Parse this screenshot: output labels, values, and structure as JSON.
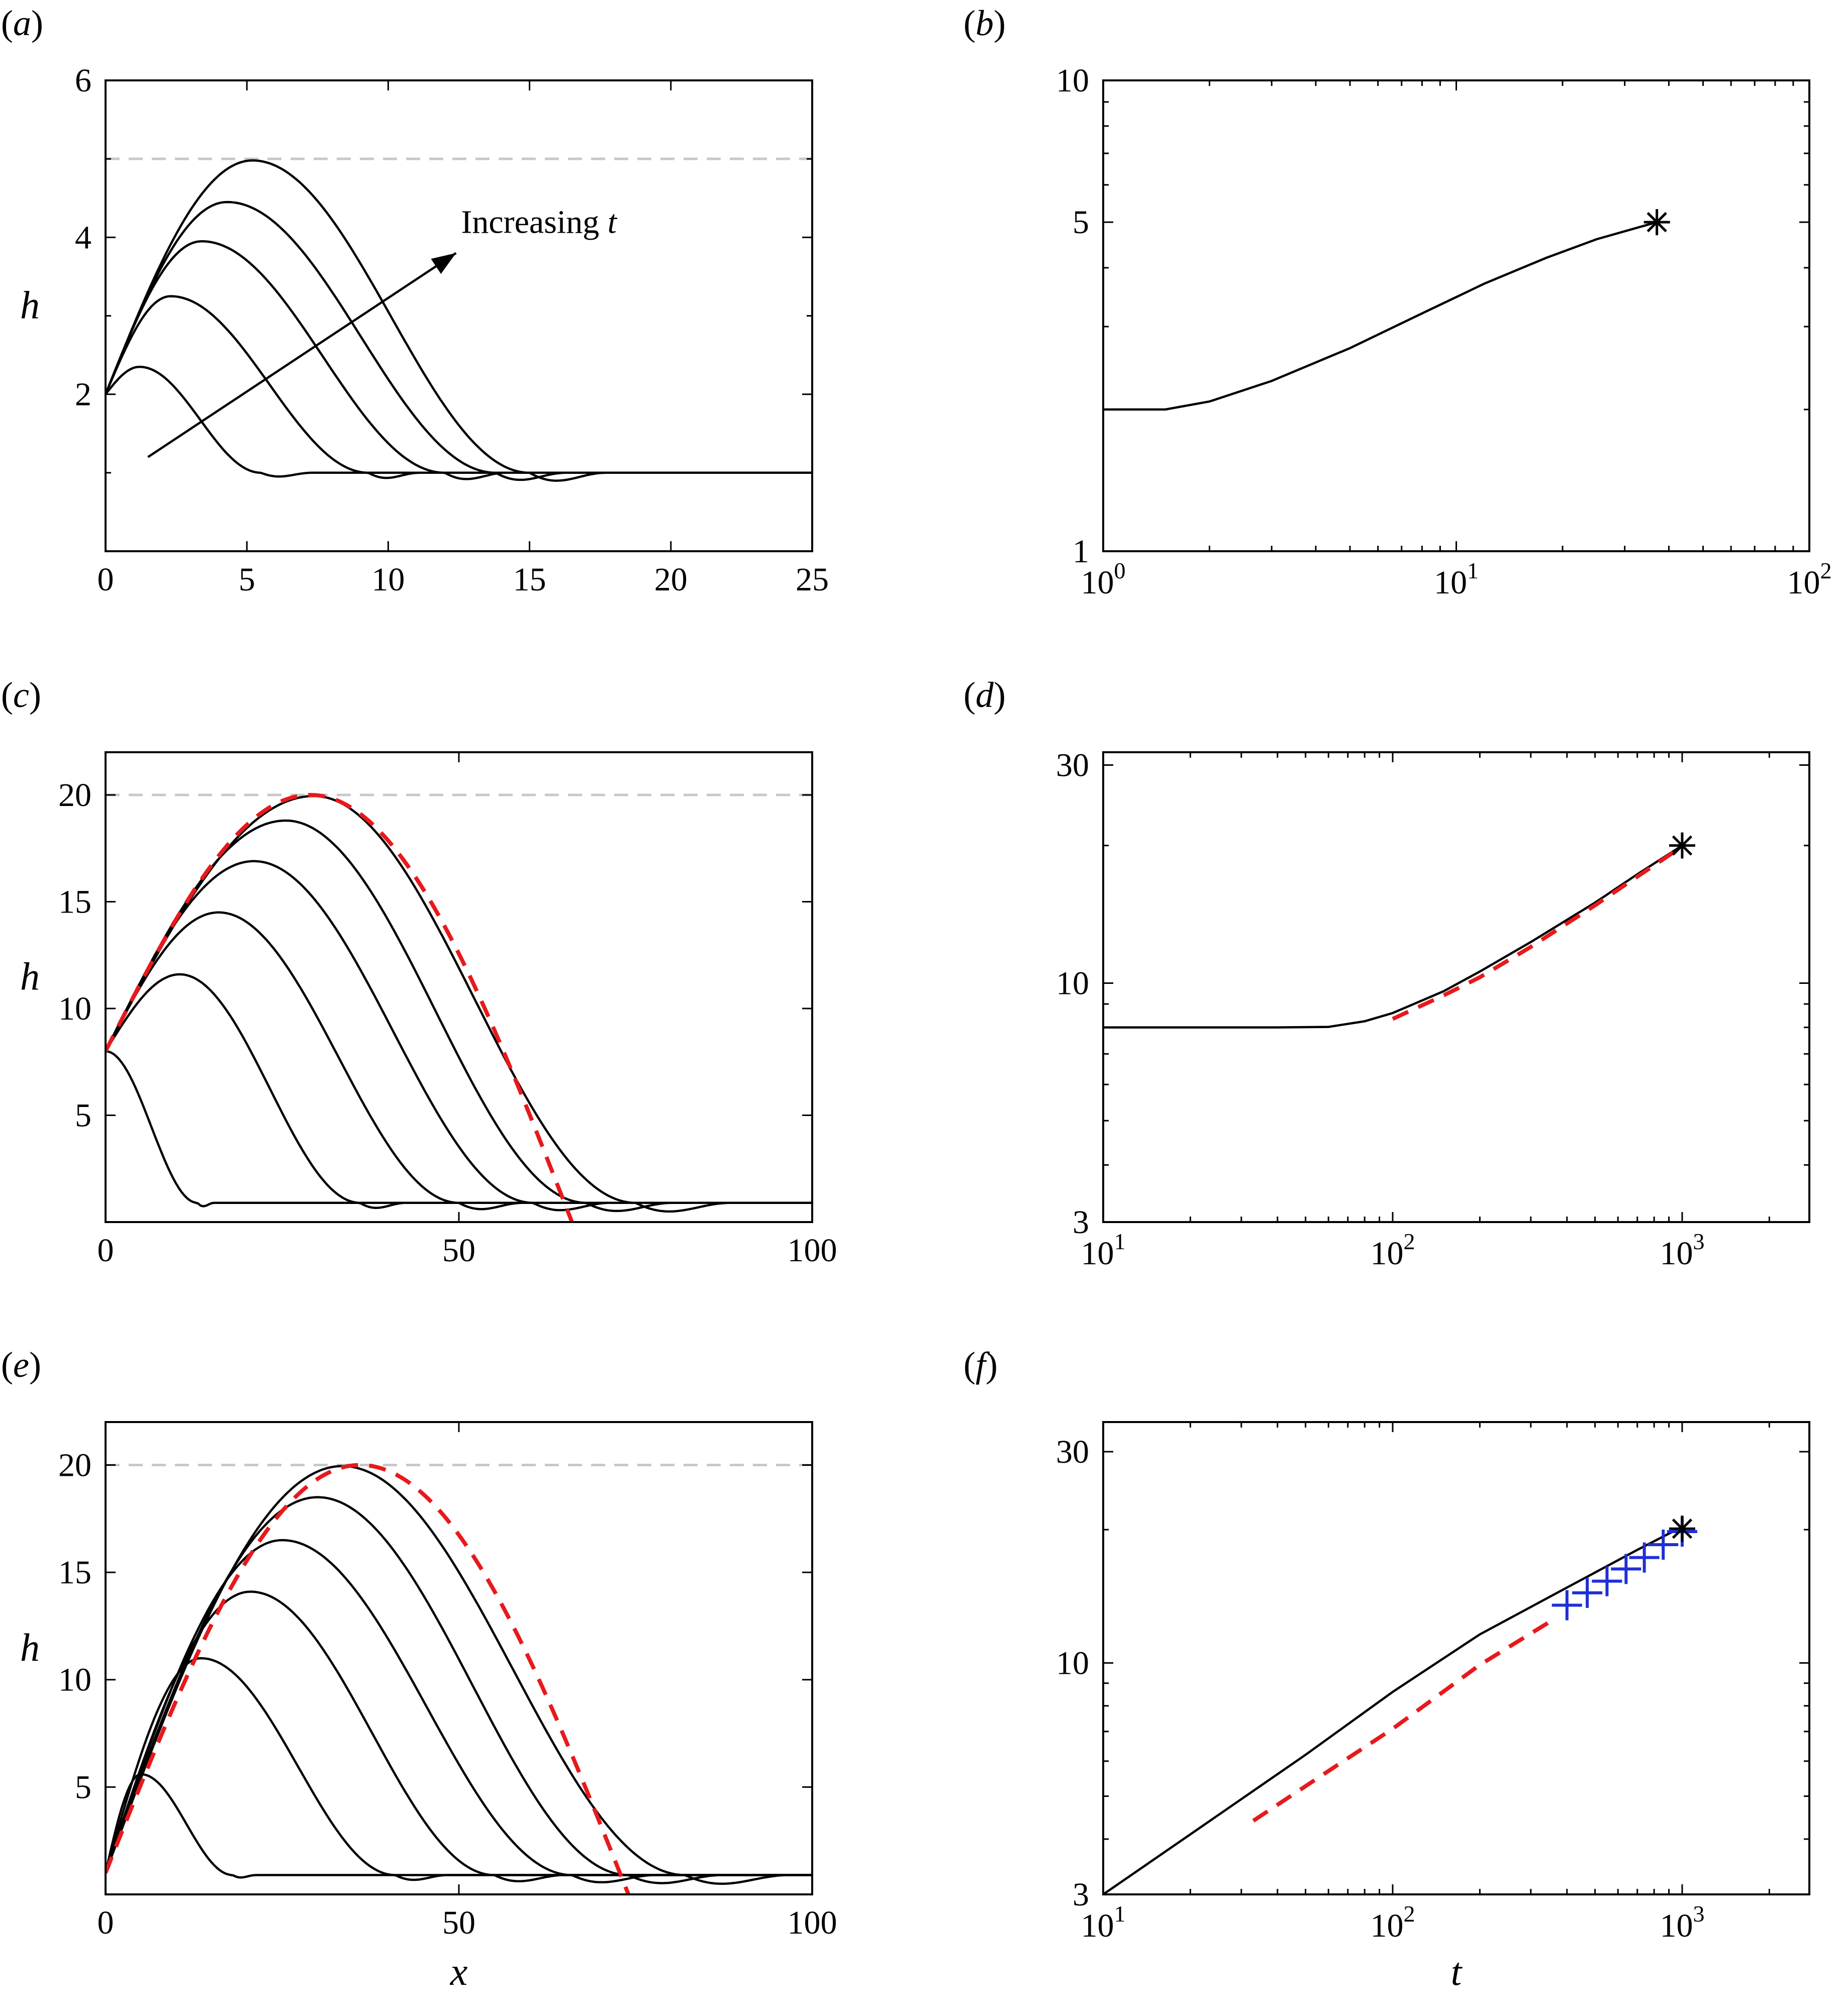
{
  "chart_data": [
    {
      "id": "a",
      "type": "line",
      "panel_label": "(a)",
      "xlabel": "",
      "ylabel": "h",
      "xlim": [
        0,
        25
      ],
      "ylim": [
        0,
        6
      ],
      "xticks": [
        0,
        5,
        10,
        15,
        20,
        25
      ],
      "xtick_labels": [
        "0",
        "5",
        "10",
        "15",
        "20",
        "25"
      ],
      "yticks": [
        2,
        4,
        6
      ],
      "ytick_labels": [
        "2",
        "4",
        "6"
      ],
      "reference_line": {
        "y": 5,
        "style": "dashed",
        "color": "#c8c8c8"
      },
      "annotation": {
        "text_prefix": "Increasing ",
        "text_var": "t",
        "arrow_from": [
          1.5,
          1.2
        ],
        "arrow_to": [
          12.4,
          3.8
        ]
      },
      "series": [
        {
          "shape": "bump",
          "h0": 2.0,
          "peak_x": 1.2,
          "peak_h": 2.35,
          "front_x": 5.5,
          "color": "#000000"
        },
        {
          "shape": "bump",
          "h0": 2.0,
          "peak_x": 2.3,
          "peak_h": 3.25,
          "front_x": 9.3,
          "color": "#000000"
        },
        {
          "shape": "bump",
          "h0": 2.0,
          "peak_x": 3.4,
          "peak_h": 3.95,
          "front_x": 12.0,
          "color": "#000000"
        },
        {
          "shape": "bump",
          "h0": 2.0,
          "peak_x": 4.3,
          "peak_h": 4.45,
          "front_x": 13.8,
          "color": "#000000"
        },
        {
          "shape": "bump",
          "h0": 2.0,
          "peak_x": 5.2,
          "peak_h": 4.98,
          "front_x": 15.0,
          "color": "#000000"
        }
      ],
      "baseline_h": 1.0
    },
    {
      "id": "b",
      "type": "line",
      "panel_label": "(b)",
      "xlabel": "",
      "ylabel": "",
      "xscale": "log",
      "yscale": "log",
      "xlim": [
        1,
        100
      ],
      "ylim": [
        1,
        10
      ],
      "xticks": [
        1,
        10,
        100
      ],
      "xtick_labels": [
        [
          "10",
          "0"
        ],
        [
          "10",
          "1"
        ],
        [
          "10",
          "2"
        ]
      ],
      "yticks": [
        1,
        5,
        10
      ],
      "ytick_labels": [
        "1",
        "5",
        "10"
      ],
      "series": [
        {
          "name": "",
          "style": "solid",
          "color": "#000000",
          "x": [
            1,
            1.5,
            2,
            3,
            5,
            8,
            12,
            18,
            25,
            37
          ],
          "y": [
            2.0,
            2.0,
            2.08,
            2.3,
            2.7,
            3.2,
            3.7,
            4.2,
            4.6,
            5.0
          ]
        }
      ],
      "markers": [
        {
          "x": 37,
          "y": 5.0,
          "symbol": "asterisk",
          "color": "#000000"
        }
      ]
    },
    {
      "id": "c",
      "type": "line",
      "panel_label": "(c)",
      "xlabel": "",
      "ylabel": "h",
      "xlim": [
        0,
        100
      ],
      "ylim": [
        0,
        22
      ],
      "xticks": [
        0,
        50,
        100
      ],
      "xtick_labels": [
        "0",
        "50",
        "100"
      ],
      "yticks": [
        5,
        10,
        15,
        20
      ],
      "ytick_labels": [
        "5",
        "10",
        "15",
        "20"
      ],
      "reference_line": {
        "y": 20,
        "style": "dashed",
        "color": "#c8c8c8"
      },
      "series": [
        {
          "shape": "decay",
          "h0": 8.0,
          "front_x": 13.0,
          "color": "#000000"
        },
        {
          "shape": "bump",
          "h0": 8.0,
          "peak_x": 10.5,
          "peak_h": 11.6,
          "front_x": 36.0,
          "color": "#000000"
        },
        {
          "shape": "bump",
          "h0": 8.0,
          "peak_x": 16.0,
          "peak_h": 14.5,
          "front_x": 50.0,
          "color": "#000000"
        },
        {
          "shape": "bump",
          "h0": 8.0,
          "peak_x": 21.0,
          "peak_h": 16.9,
          "front_x": 60.5,
          "color": "#000000"
        },
        {
          "shape": "bump",
          "h0": 8.0,
          "peak_x": 25.5,
          "peak_h": 18.8,
          "front_x": 68.0,
          "color": "#000000"
        },
        {
          "shape": "bump",
          "h0": 8.0,
          "peak_x": 29.5,
          "peak_h": 19.95,
          "front_x": 75.0,
          "color": "#000000"
        }
      ],
      "dashed_overlay": {
        "h0": 8.0,
        "peak_x": 29.0,
        "peak_h": 20.0,
        "end_x": 66.0,
        "color": "#e8191c"
      },
      "baseline_h": 0.9
    },
    {
      "id": "d",
      "type": "line",
      "panel_label": "(d)",
      "xlabel": "",
      "ylabel": "",
      "xscale": "log",
      "yscale": "log",
      "xlim": [
        10,
        2750
      ],
      "ylim": [
        3,
        32
      ],
      "xticks": [
        10,
        100,
        1000
      ],
      "xtick_labels": [
        [
          "10",
          "1"
        ],
        [
          "10",
          "2"
        ],
        [
          "10",
          "3"
        ]
      ],
      "yticks": [
        3,
        10,
        30
      ],
      "ytick_labels": [
        "3",
        "10",
        "30"
      ],
      "series": [
        {
          "name": "",
          "style": "solid",
          "color": "#000000",
          "x": [
            10,
            20,
            40,
            60,
            80,
            100,
            150,
            200,
            300,
            500,
            700,
            1000
          ],
          "y": [
            8.0,
            8.0,
            8.0,
            8.02,
            8.25,
            8.6,
            9.6,
            10.6,
            12.3,
            15.0,
            17.3,
            20.0
          ]
        },
        {
          "name": "",
          "style": "dashed",
          "color": "#e8191c",
          "x": [
            100,
            150,
            200,
            300,
            500,
            700,
            1000
          ],
          "y": [
            8.35,
            9.4,
            10.3,
            12.0,
            14.8,
            17.1,
            19.9
          ]
        }
      ],
      "markers": [
        {
          "x": 1000,
          "y": 20.0,
          "symbol": "asterisk",
          "color": "#000000"
        }
      ]
    },
    {
      "id": "e",
      "type": "line",
      "panel_label": "(e)",
      "xlabel": "x",
      "ylabel": "h",
      "xlim": [
        0,
        100
      ],
      "ylim": [
        0,
        22
      ],
      "xticks": [
        0,
        50,
        100
      ],
      "xtick_labels": [
        "0",
        "50",
        "100"
      ],
      "yticks": [
        5,
        10,
        15,
        20
      ],
      "ytick_labels": [
        "5",
        "10",
        "15",
        "20"
      ],
      "reference_line": {
        "y": 20,
        "style": "dashed",
        "color": "#c8c8c8"
      },
      "series": [
        {
          "shape": "bump",
          "h0": 1.0,
          "peak_x": 5.0,
          "peak_h": 5.6,
          "front_x": 18.0,
          "color": "#000000"
        },
        {
          "shape": "bump",
          "h0": 1.0,
          "peak_x": 13.5,
          "peak_h": 11.0,
          "front_x": 41.0,
          "color": "#000000"
        },
        {
          "shape": "bump",
          "h0": 1.0,
          "peak_x": 20.5,
          "peak_h": 14.1,
          "front_x": 55.0,
          "color": "#000000"
        },
        {
          "shape": "bump",
          "h0": 1.0,
          "peak_x": 25.0,
          "peak_h": 16.5,
          "front_x": 66.0,
          "color": "#000000"
        },
        {
          "shape": "bump",
          "h0": 1.0,
          "peak_x": 30.0,
          "peak_h": 18.5,
          "front_x": 74.0,
          "color": "#000000"
        },
        {
          "shape": "bump",
          "h0": 1.0,
          "peak_x": 33.5,
          "peak_h": 19.95,
          "front_x": 82.0,
          "color": "#000000"
        }
      ],
      "dashed_overlay": {
        "h0": 1.0,
        "peak_x": 36.0,
        "peak_h": 20.0,
        "end_x": 74.0,
        "color": "#e8191c"
      },
      "baseline_h": 0.9
    },
    {
      "id": "f",
      "type": "line",
      "panel_label": "(f)",
      "xlabel": "t",
      "ylabel": "",
      "xscale": "log",
      "yscale": "log",
      "xlim": [
        10,
        2750
      ],
      "ylim": [
        3,
        35
      ],
      "xticks": [
        10,
        100,
        1000
      ],
      "xtick_labels": [
        [
          "10",
          "1"
        ],
        [
          "10",
          "2"
        ],
        [
          "10",
          "3"
        ]
      ],
      "yticks": [
        3,
        10,
        30
      ],
      "ytick_labels": [
        "3",
        "10",
        "30"
      ],
      "series": [
        {
          "name": "",
          "style": "solid",
          "color": "#000000",
          "x": [
            10,
            20,
            50,
            100,
            200,
            400,
            700,
            1000
          ],
          "y": [
            3.0,
            4.1,
            6.2,
            8.6,
            11.6,
            14.8,
            18.0,
            20.3
          ]
        },
        {
          "name": "",
          "style": "dashed",
          "color": "#e8191c",
          "x": [
            33,
            60,
            100,
            200,
            350
          ],
          "y": [
            4.4,
            5.7,
            7.1,
            9.9,
            12.4
          ]
        }
      ],
      "markers": [
        {
          "x": 400,
          "y": 13.5,
          "symbol": "plus",
          "color": "#1f2fd6"
        },
        {
          "x": 470,
          "y": 14.4,
          "symbol": "plus",
          "color": "#1f2fd6"
        },
        {
          "x": 550,
          "y": 15.3,
          "symbol": "plus",
          "color": "#1f2fd6"
        },
        {
          "x": 640,
          "y": 16.3,
          "symbol": "plus",
          "color": "#1f2fd6"
        },
        {
          "x": 740,
          "y": 17.3,
          "symbol": "plus",
          "color": "#1f2fd6"
        },
        {
          "x": 860,
          "y": 18.5,
          "symbol": "plus",
          "color": "#1f2fd6"
        },
        {
          "x": 1000,
          "y": 19.8,
          "symbol": "plus",
          "color": "#1f2fd6"
        },
        {
          "x": 1000,
          "y": 20.1,
          "symbol": "asterisk",
          "color": "#000000"
        }
      ]
    }
  ]
}
